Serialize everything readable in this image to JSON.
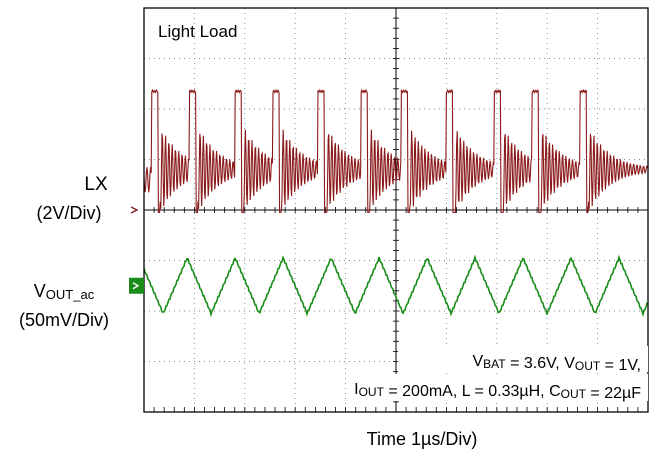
{
  "chart_data": {
    "type": "line",
    "title": "Light Load",
    "xlabel": "Time 1µs/Div)",
    "x_divisions": 10,
    "y_divisions": 8,
    "grid": true,
    "channels": [
      {
        "name_main": "LX",
        "name_sub": "",
        "scale": "(2V/Div)",
        "marker": "outline-arrow",
        "color": "#8B1A1A",
        "units": "V",
        "zero_div": 4.0,
        "waveform": "switching node: high pulse (~4.3V) then ringing decaying to ~1V; pulses repeat every ~1.0–1.5 div"
      },
      {
        "name_main": "V",
        "name_sub": "OUT_ac",
        "scale": "(50mV/Div)",
        "marker": "filled-box",
        "color": "#1A8C1A",
        "units": "mV",
        "zero_div": 1.0,
        "waveform": "AC-coupled output ripple, triangular, ~±30mV, period matching LX pulses"
      }
    ],
    "pulse_positions_div": [
      0.15,
      0.9,
      1.8,
      2.55,
      3.45,
      4.3,
      5.1,
      6.0,
      6.95,
      7.7,
      8.65
    ]
  },
  "annotation": {
    "line1": [
      {
        "t": "V",
        "sub": "BAT"
      },
      {
        "t": " = 3.6V, V",
        "sub": "OUT"
      },
      {
        "t": " = 1V,",
        "sub": ""
      }
    ],
    "line2": [
      {
        "t": "I",
        "sub": "OUT"
      },
      {
        "t": " = 200mA, L = 0.33µH, C",
        "sub": "OUT"
      },
      {
        "t": " = 22µF",
        "sub": ""
      }
    ]
  }
}
